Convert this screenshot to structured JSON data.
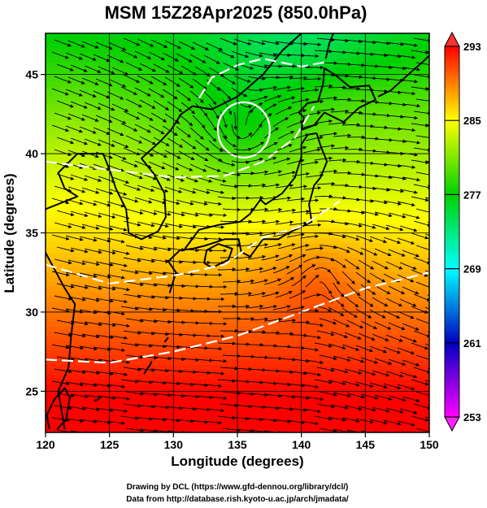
{
  "title": "MSM 15Z28Apr2025 (850.0hPa)",
  "xlabel": "Longitude (degrees)",
  "ylabel": "Latitude  (degrees)",
  "credits": {
    "line1": "Drawing by DCL (https://www.gfd-dennou.org/library/dcl/)",
    "line2": "Data from http://database.rish.kyoto-u.ac.jp/arch/jmadata/"
  },
  "chart_data": {
    "type": "heatmap",
    "variable": "temperature with wind streamlines",
    "xlim": [
      120,
      150
    ],
    "ylim": [
      22.4,
      47.6
    ],
    "x_ticks": [
      120,
      125,
      130,
      135,
      140,
      145,
      150
    ],
    "y_ticks": [
      25,
      30,
      35,
      40,
      45
    ],
    "grid": true,
    "colorbar": {
      "min": 253,
      "max": 293,
      "ticks": [
        253,
        261,
        269,
        277,
        285,
        293
      ],
      "colors": [
        "#ff00ff",
        "#0000c0",
        "#00ffff",
        "#00d000",
        "#ffff00",
        "#ff0000"
      ]
    }
  }
}
